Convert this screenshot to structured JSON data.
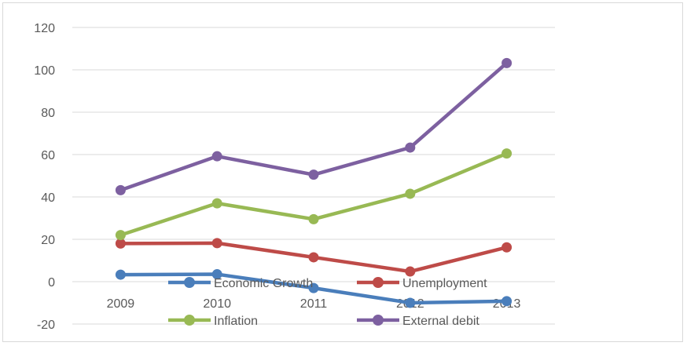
{
  "chart_data": {
    "type": "line",
    "title": "",
    "xlabel": "",
    "ylabel": "",
    "categories": [
      "2009",
      "2010",
      "2011",
      "2012",
      "2013"
    ],
    "ylim": [
      -20,
      120
    ],
    "yticks": [
      -20,
      0,
      20,
      40,
      60,
      80,
      100,
      120
    ],
    "grid": true,
    "legend_position": "bottom-overlapping",
    "series": [
      {
        "name": "Economic Growth",
        "color": "#4a7ebb",
        "values": [
          3.3,
          3.5,
          -3.0,
          -10.0,
          -9.2
        ]
      },
      {
        "name": "Unemployment",
        "color": "#be4b48",
        "values": [
          18.0,
          18.2,
          11.5,
          4.8,
          16.2
        ]
      },
      {
        "name": "Inflation",
        "color": "#98b954",
        "values": [
          22.0,
          37.0,
          29.5,
          41.5,
          60.5
        ]
      },
      {
        "name": "External debit",
        "color": "#7d60a0",
        "values": [
          43.2,
          59.2,
          50.5,
          63.3,
          103.2
        ]
      }
    ]
  }
}
